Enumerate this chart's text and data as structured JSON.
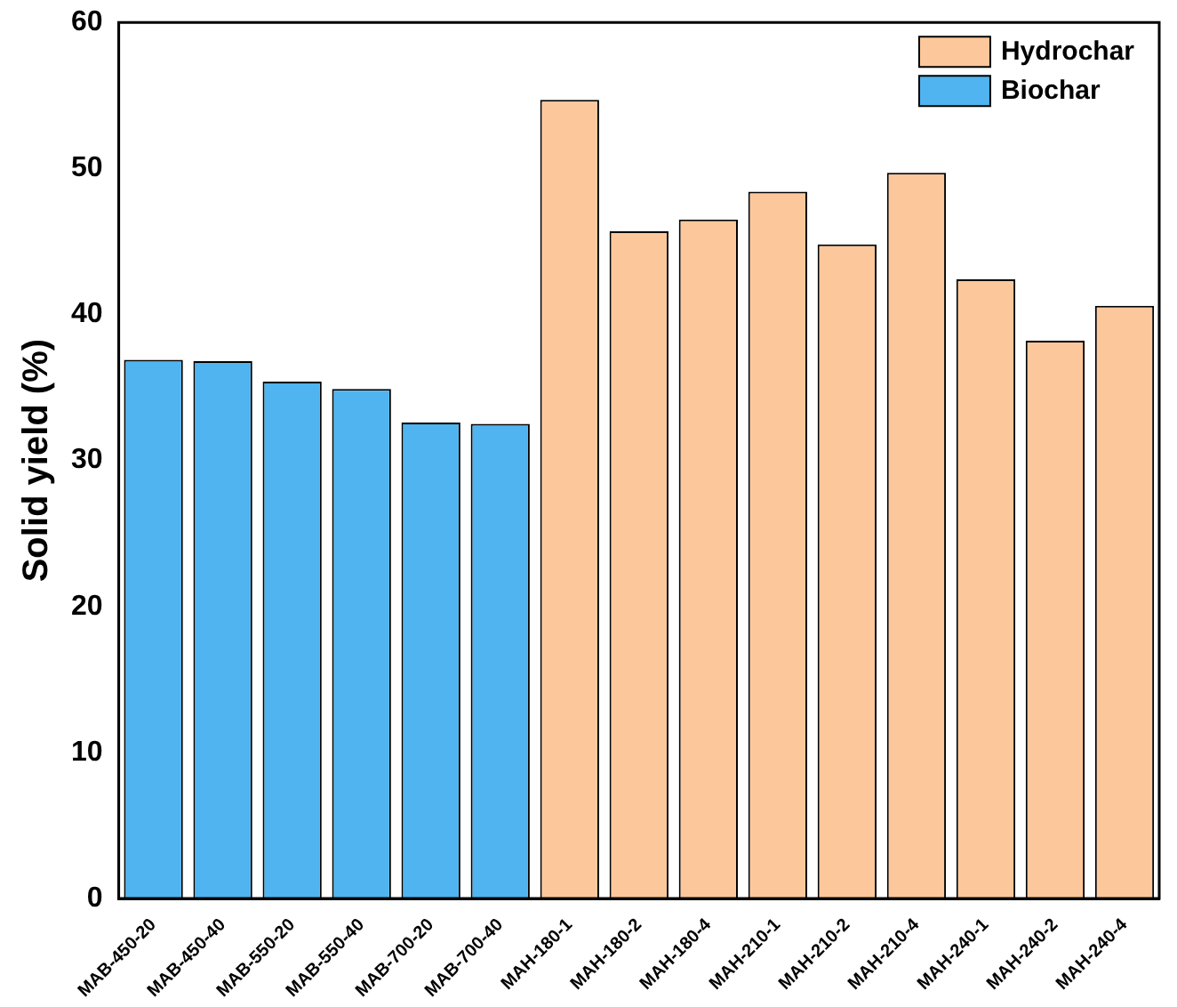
{
  "chart_data": {
    "type": "bar",
    "ylabel": "Solid yield (%)",
    "categories": [
      "MAB-450-20",
      "MAB-450-40",
      "MAB-550-20",
      "MAB-550-40",
      "MAB-700-20",
      "MAB-700-40",
      "MAH-180-1",
      "MAH-180-2",
      "MAH-180-4",
      "MAH-210-1",
      "MAH-210-2",
      "MAH-210-4",
      "MAH-240-1",
      "MAH-240-2",
      "MAH-240-4"
    ],
    "series": [
      {
        "name": "Hydrochar",
        "color": "#fcc89b",
        "values": [
          null,
          null,
          null,
          null,
          null,
          null,
          54.7,
          45.7,
          46.5,
          48.4,
          44.8,
          49.7,
          42.4,
          38.2,
          40.6
        ]
      },
      {
        "name": "Biochar",
        "color": "#4fb4ef",
        "values": [
          36.9,
          36.8,
          35.4,
          34.9,
          32.6,
          32.5,
          null,
          null,
          null,
          null,
          null,
          null,
          null,
          null,
          null
        ]
      }
    ],
    "stacked": true,
    "ylim": [
      0,
      60
    ],
    "yticks": [
      0,
      10,
      20,
      30,
      40,
      50,
      60
    ],
    "grid": false,
    "legend": "top right"
  }
}
